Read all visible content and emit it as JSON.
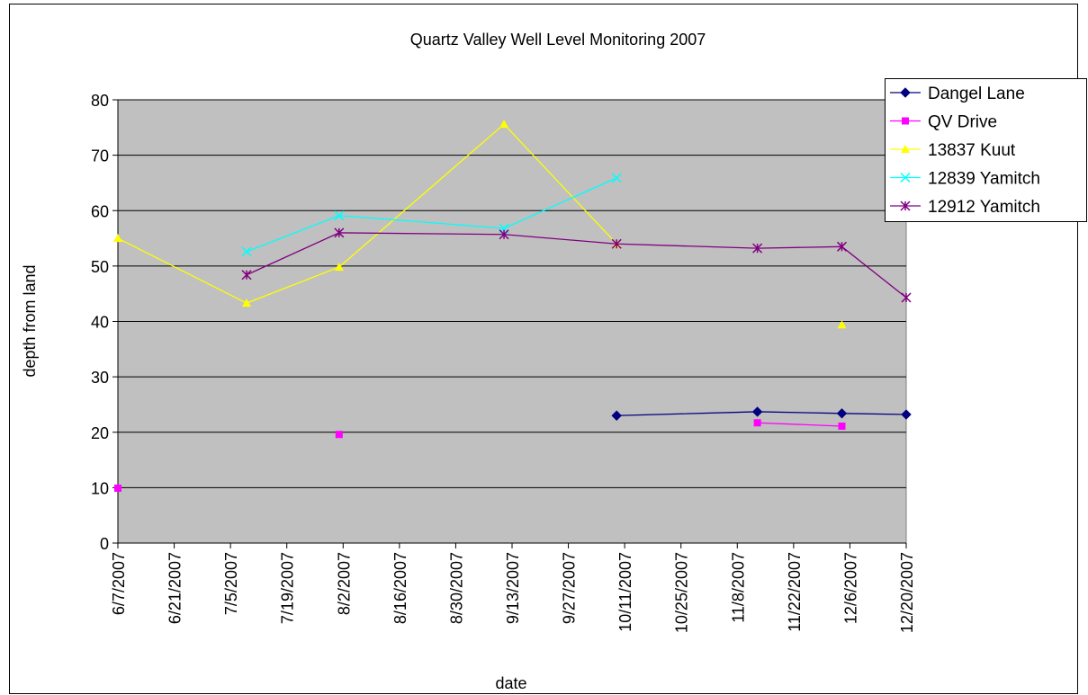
{
  "chart_data": {
    "type": "line",
    "title": "Quartz Valley Well Level Monitoring 2007",
    "x_label": "date",
    "y_label": "depth from land",
    "x": [
      "6/7/2007",
      "7/9/2007",
      "8/1/2007",
      "9/11/2007",
      "10/9/2007",
      "11/13/2007",
      "12/4/2007",
      "12/20/2007"
    ],
    "series": [
      {
        "name": "Dangel Lane",
        "color": "#000080",
        "marker": "diamond",
        "values": [
          null,
          null,
          null,
          null,
          23.0,
          23.7,
          23.4,
          23.2
        ]
      },
      {
        "name": "QV Drive",
        "color": "#ff00ff",
        "marker": "square",
        "values": [
          9.9,
          null,
          19.6,
          null,
          null,
          21.7,
          21.1,
          null
        ]
      },
      {
        "name": "13837 Kuut",
        "color": "#ffff00",
        "marker": "triangle",
        "values": [
          55.0,
          43.3,
          49.8,
          75.6,
          54.0,
          null,
          39.4,
          null
        ]
      },
      {
        "name": "12839 Yamitch",
        "color": "#00ffff",
        "marker": "x",
        "values": [
          null,
          52.6,
          59.1,
          56.8,
          65.9,
          null,
          null,
          null
        ]
      },
      {
        "name": "12912 Yamitch",
        "color": "#800080",
        "marker": "star",
        "values": [
          null,
          48.4,
          56.0,
          55.7,
          54.0,
          53.2,
          53.5,
          44.3
        ]
      }
    ],
    "xlim": [
      "6/7/2007",
      "12/20/2007"
    ],
    "xticks": [
      "6/7/2007",
      "6/21/2007",
      "7/5/2007",
      "7/19/2007",
      "8/2/2007",
      "8/16/2007",
      "8/30/2007",
      "9/13/2007",
      "9/27/2007",
      "10/11/2007",
      "10/25/2007",
      "11/8/2007",
      "11/22/2007",
      "12/6/2007",
      "12/20/2007"
    ],
    "ylim": [
      0,
      80
    ],
    "yticks": [
      0,
      10,
      20,
      30,
      40,
      50,
      60,
      70,
      80
    ],
    "grid": true,
    "plot_background": "#c0c0c0",
    "legend": "right"
  }
}
